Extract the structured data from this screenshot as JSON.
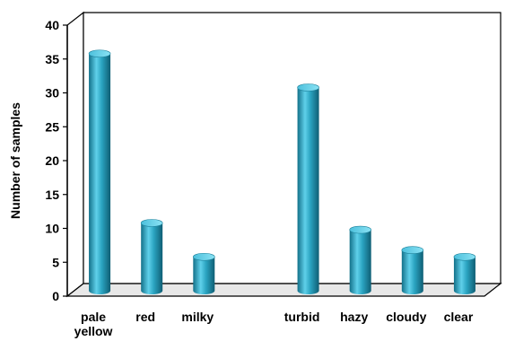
{
  "chart_data": {
    "type": "bar",
    "title": "",
    "xlabel": "",
    "ylabel": "Number of samples",
    "ylim": [
      0,
      40
    ],
    "yticks": [
      0,
      5,
      10,
      15,
      20,
      25,
      30,
      35,
      40
    ],
    "grid": false,
    "categories": [
      [
        "pale",
        "yellow"
      ],
      [
        "red"
      ],
      [
        "milky"
      ],
      [
        ""
      ],
      [
        "turbid"
      ],
      [
        "hazy"
      ],
      [
        "cloudy"
      ],
      [
        "clear"
      ]
    ],
    "values": [
      35,
      10,
      5,
      null,
      30,
      9,
      6,
      5
    ],
    "bar_color": "#2aa3c0"
  }
}
